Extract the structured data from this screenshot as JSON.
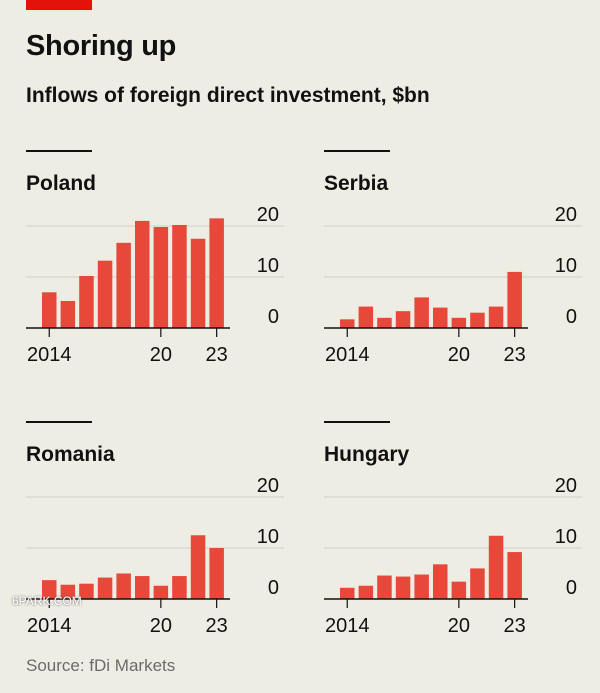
{
  "header": {
    "title": "Shoring up",
    "subtitle": "Inflows of foreign direct investment, $bn"
  },
  "source": "Source: fDi Markets",
  "watermark": "6PARK.COM",
  "colors": {
    "bar": "#e8483a",
    "accent": "#e3120b",
    "grid": "#cfcfc5",
    "background": "#eeede4"
  },
  "chart_data": [
    {
      "type": "bar",
      "title": "Poland",
      "x": [
        2014,
        2015,
        2016,
        2017,
        2018,
        2019,
        2020,
        2021,
        2022,
        2023
      ],
      "values": [
        7,
        5.3,
        10.2,
        13.2,
        16.7,
        21,
        19.8,
        20.2,
        17.5,
        21.5
      ],
      "ylim": [
        0,
        20
      ],
      "yticks": [
        "0",
        "10",
        "20"
      ],
      "xtick_labels": [
        "2014",
        "20",
        "23"
      ]
    },
    {
      "type": "bar",
      "title": "Serbia",
      "x": [
        2014,
        2015,
        2016,
        2017,
        2018,
        2019,
        2020,
        2021,
        2022,
        2023
      ],
      "values": [
        1.7,
        4.2,
        2,
        3.3,
        6,
        4,
        2,
        3,
        4.2,
        11
      ],
      "ylim": [
        0,
        20
      ],
      "yticks": [
        "0",
        "10",
        "20"
      ],
      "xtick_labels": [
        "2014",
        "20",
        "23"
      ]
    },
    {
      "type": "bar",
      "title": "Romania",
      "x": [
        2014,
        2015,
        2016,
        2017,
        2018,
        2019,
        2020,
        2021,
        2022,
        2023
      ],
      "values": [
        3.7,
        2.8,
        3,
        4.2,
        5,
        4.5,
        2.6,
        4.5,
        12.5,
        10
      ],
      "ylim": [
        0,
        20
      ],
      "yticks": [
        "0",
        "10",
        "20"
      ],
      "xtick_labels": [
        "2014",
        "20",
        "23"
      ]
    },
    {
      "type": "bar",
      "title": "Hungary",
      "x": [
        2014,
        2015,
        2016,
        2017,
        2018,
        2019,
        2020,
        2021,
        2022,
        2023
      ],
      "values": [
        2.2,
        2.6,
        4.6,
        4.4,
        4.8,
        6.8,
        3.4,
        6,
        12.4,
        9.2
      ],
      "ylim": [
        0,
        20
      ],
      "yticks": [
        "0",
        "10",
        "20"
      ],
      "xtick_labels": [
        "2014",
        "20",
        "23"
      ]
    }
  ]
}
